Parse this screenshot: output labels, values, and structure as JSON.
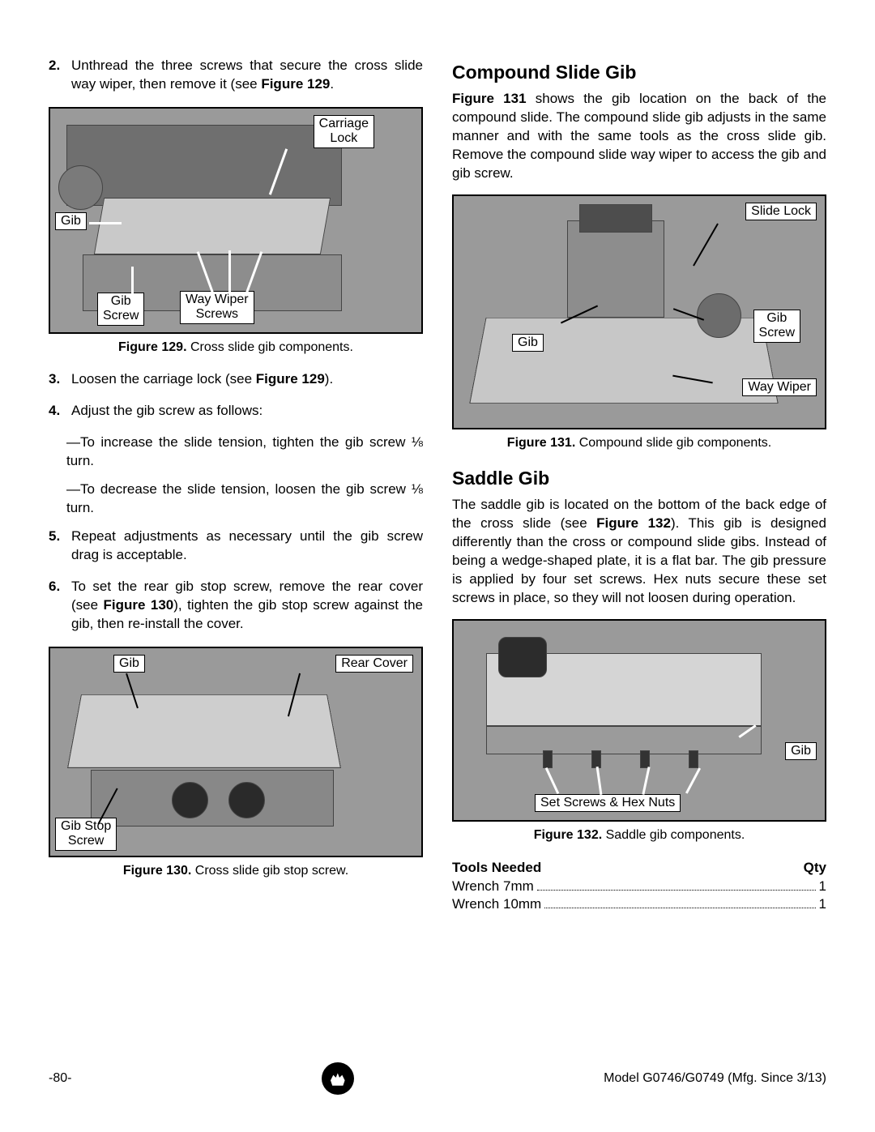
{
  "page": {
    "number": "-80-",
    "model": "Model G0746/G0749 (Mfg. Since 3/13)"
  },
  "left": {
    "step2_num": "2.",
    "step2": "Unthread the three screws that secure the cross slide way wiper, then remove it (see ",
    "step2_figref": "Figure 129",
    "step2_after": ".",
    "fig129": {
      "caption_b": "Figure 129.",
      "caption": " Cross slide gib components.",
      "labels": {
        "carriage_lock": "Carriage\nLock",
        "gib": "Gib",
        "gib_screw": "Gib\nScrew",
        "way_wiper": "Way Wiper\nScrews"
      }
    },
    "step3_num": "3.",
    "step3_a": "Loosen the carriage lock (see ",
    "step3_b": "Figure 129",
    "step3_c": ").",
    "step4_num": "4.",
    "step4": "Adjust the gib screw as follows:",
    "step4a": "—To increase the slide tension, tighten the gib screw ⅛ turn.",
    "step4b": "—To decrease the slide tension, loosen the gib screw ⅛ turn.",
    "step5_num": "5.",
    "step5": "Repeat adjustments as necessary until the gib screw drag is acceptable.",
    "step6_num": "6.",
    "step6_a": "To set the rear gib stop screw, remove the rear cover (see ",
    "step6_b": "Figure 130",
    "step6_c": "), tighten the gib stop screw against the gib, then re-install the cover.",
    "fig130": {
      "caption_b": "Figure 130.",
      "caption": " Cross slide gib stop screw.",
      "labels": {
        "gib": "Gib",
        "rear_cover": "Rear Cover",
        "gib_stop": "Gib Stop\nScrew"
      }
    }
  },
  "right": {
    "h_compound": "Compound Slide Gib",
    "compound_p_a": "Figure 131",
    "compound_p_b": " shows the gib location on the back of the compound slide. The compound slide gib adjusts in the same manner and with the same tools as the cross slide gib. Remove the compound slide way wiper to access the gib and gib screw.",
    "fig131": {
      "caption_b": "Figure 131.",
      "caption": " Compound slide gib components.",
      "labels": {
        "slide_lock": "Slide Lock",
        "gib": "Gib",
        "gib_screw": "Gib\nScrew",
        "way_wiper": "Way Wiper"
      }
    },
    "h_saddle": "Saddle Gib",
    "saddle_p_a": "The saddle gib is located on the bottom of the back edge of the cross slide (see ",
    "saddle_p_b": "Figure 132",
    "saddle_p_c": "). This gib is designed differently than the cross or compound slide gibs. Instead of being a wedge-shaped plate, it is a flat bar. The gib pressure is applied by four set screws. Hex nuts secure these set screws in place, so they will not loosen during operation.",
    "fig132": {
      "caption_b": "Figure 132.",
      "caption": " Saddle gib components.",
      "labels": {
        "gib": "Gib",
        "set_screws": "Set Screws & Hex Nuts"
      }
    },
    "tools": {
      "head_l": "Tools Needed",
      "head_r": "Qty",
      "rows": [
        {
          "name": "Wrench 7mm",
          "qty": "1"
        },
        {
          "name": "Wrench 10mm",
          "qty": "1"
        }
      ]
    }
  },
  "style": {
    "figure_border": "#000000",
    "figure_bg": "#9a9a9a",
    "label_bg": "#ffffff"
  }
}
